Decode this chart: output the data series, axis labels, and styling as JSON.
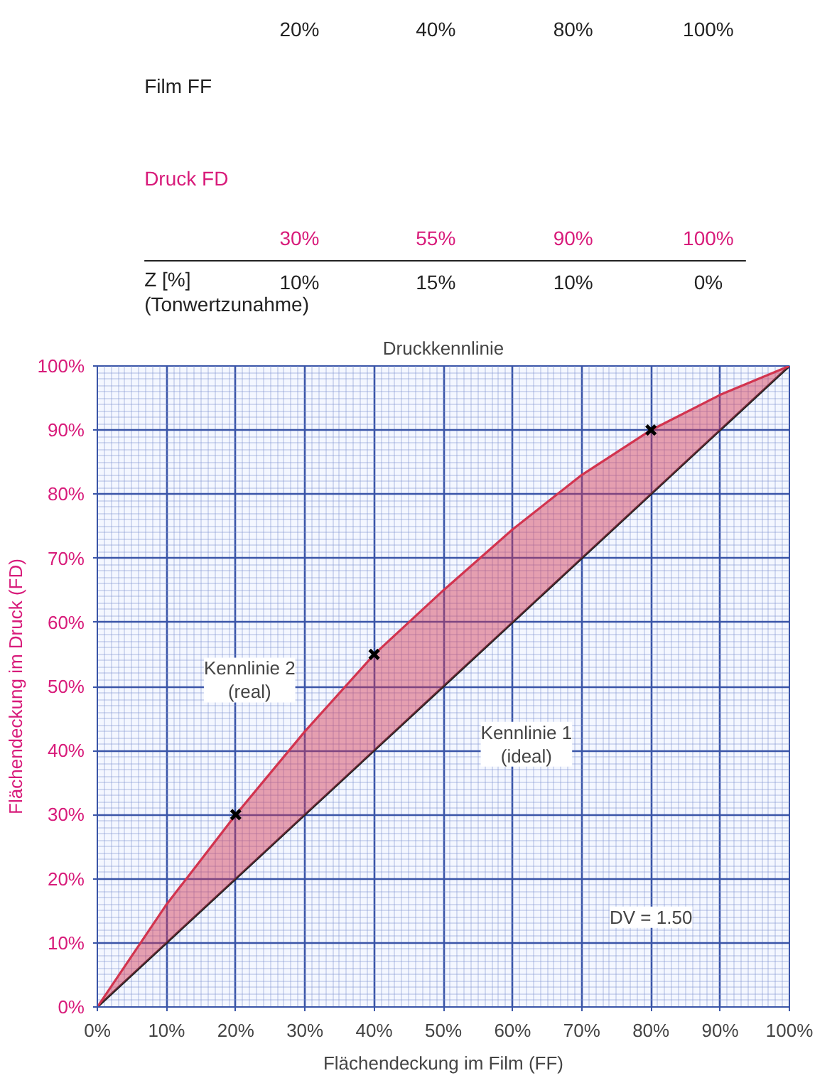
{
  "chart_data": [
    {
      "type": "other",
      "annotations": [
        "Film FF",
        "20%",
        "40%",
        "80%",
        "100%",
        "Druck FD",
        "30%",
        "55%",
        "90%",
        "100%",
        "Z [%]\n(Tonwertzunahme)",
        "10%",
        "15%",
        "10%",
        "0%"
      ]
    },
    {
      "type": "line",
      "title": "Druckkennlinie",
      "xlabel": "Flächendeckung im Film (FF)",
      "ylabel": "Flächendeckung im Druck (FD)",
      "x": [
        0,
        10,
        20,
        30,
        40,
        50,
        60,
        70,
        80,
        90,
        100
      ],
      "series": [
        {
          "color": "#222222",
          "values": [
            0,
            10,
            20,
            30,
            40,
            50,
            60,
            70,
            80,
            90,
            100
          ]
        },
        {
          "color": "#d2344f",
          "values": [
            0,
            16,
            30,
            43,
            55,
            65,
            74.5,
            83,
            90,
            95.5,
            100
          ],
          "lower": [
            0,
            10,
            20,
            30,
            40,
            50,
            60,
            70,
            80,
            90,
            100
          ],
          "upper": [
            0,
            16,
            30,
            43,
            55,
            65,
            74.5,
            83,
            90,
            95.5,
            100
          ]
        },
        {
          "type": "scatter",
          "x": [
            20,
            40,
            80
          ],
          "values": [
            30,
            55,
            90
          ],
          "color": "#000000",
          "marker": "cross"
        }
      ],
      "xlim": [
        0,
        100
      ],
      "ylim": [
        0,
        100
      ],
      "xticks": [
        {
          "value": 0,
          "label": "0%"
        },
        {
          "value": 10,
          "label": "10%"
        },
        {
          "value": 20,
          "label": "20%"
        },
        {
          "value": 30,
          "label": "30%"
        },
        {
          "value": 40,
          "label": "40%"
        },
        {
          "value": 50,
          "label": "50%"
        },
        {
          "value": 60,
          "label": "60%"
        },
        {
          "value": 70,
          "label": "70%"
        },
        {
          "value": 80,
          "label": "80%"
        },
        {
          "value": 90,
          "label": "90%"
        },
        {
          "value": 100,
          "label": "100%"
        }
      ],
      "yticks": [
        {
          "value": 0,
          "label": "0%"
        },
        {
          "value": 10,
          "label": "10%"
        },
        {
          "value": 20,
          "label": "20%"
        },
        {
          "value": 30,
          "label": "30%"
        },
        {
          "value": 40,
          "label": "40%"
        },
        {
          "value": 50,
          "label": "50%"
        },
        {
          "value": 60,
          "label": "60%"
        },
        {
          "value": 70,
          "label": "70%"
        },
        {
          "value": 80,
          "label": "80%"
        },
        {
          "value": 90,
          "label": "90%"
        },
        {
          "value": 100,
          "label": "100%"
        }
      ],
      "grid": true,
      "annotations": [
        "Kennlinie 2\n(real)",
        "Kennlinie 1\n(ideal)",
        "DV = 1.50"
      ]
    }
  ]
}
